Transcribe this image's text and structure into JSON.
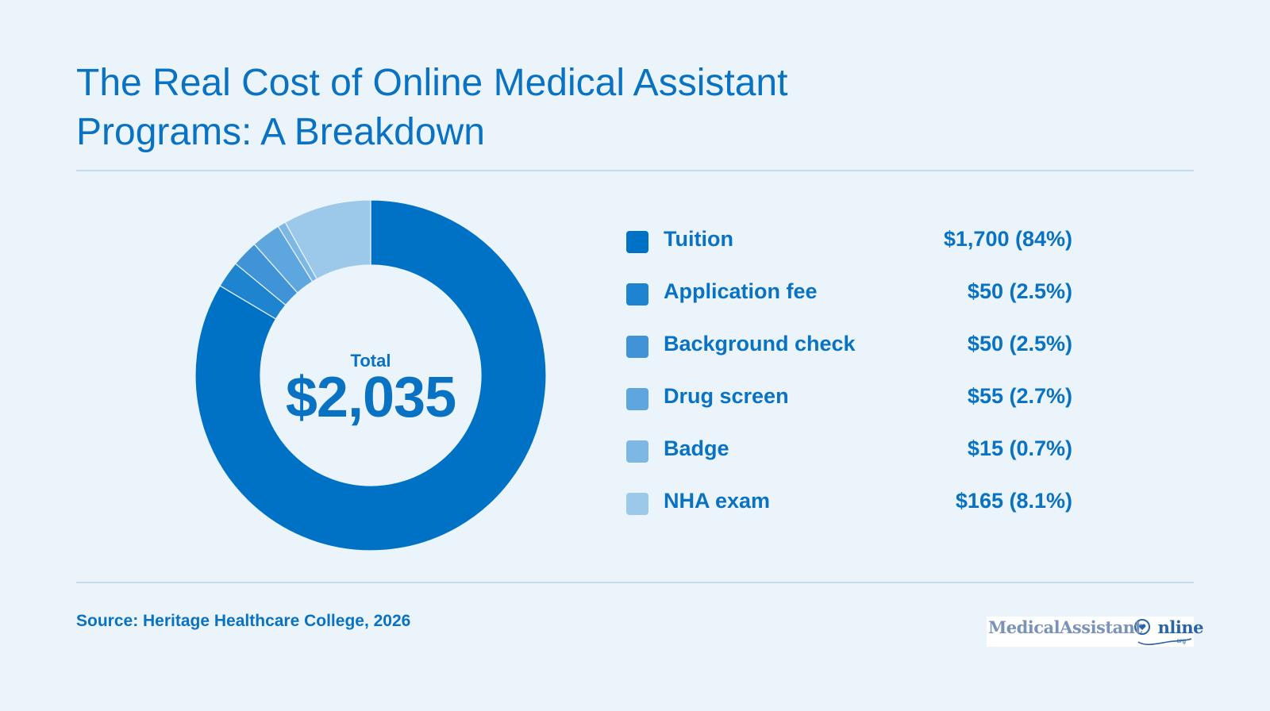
{
  "title": {
    "line1": "The Real Cost of Online Medical Assistant",
    "line2": "Programs: A Breakdown"
  },
  "center": {
    "label": "Total",
    "value": "$2,035"
  },
  "legend": [
    {
      "label": "Tuition",
      "value": "$1,700 (84%)"
    },
    {
      "label": "Application fee",
      "value": "$50 (2.5%)"
    },
    {
      "label": "Background check",
      "value": "$50 (2.5%)"
    },
    {
      "label": "Drug screen",
      "value": "$55 (2.7%)"
    },
    {
      "label": "Badge",
      "value": "$15 (0.7%)"
    },
    {
      "label": "NHA exam",
      "value": "$165 (8.1%)"
    }
  ],
  "source": "Source: Heritage Healthcare College, 2026",
  "logo": {
    "text_main": "MedicalAssistant",
    "text_online": "nline",
    "text_org": "org"
  },
  "colors": {
    "background": "#ebf3fb",
    "text": "#0a72c2",
    "slices": [
      "#0072c6",
      "#1f84d0",
      "#3f93d6",
      "#5ea7de",
      "#7db8e4",
      "#9cc9ea"
    ]
  },
  "chart_data": {
    "type": "pie",
    "variant": "donut",
    "categories": [
      "Tuition",
      "Application fee",
      "Background check",
      "Drug screen",
      "Badge",
      "NHA exam"
    ],
    "values": [
      1700,
      50,
      50,
      55,
      15,
      165
    ],
    "percent_labels": [
      "84%",
      "2.5%",
      "2.5%",
      "2.7%",
      "0.7%",
      "8.1%"
    ],
    "total": 2035,
    "title": "The Real Cost of Online Medical Assistant Programs: A Breakdown",
    "legend_position": "right",
    "start_angle": "top",
    "direction": "clockwise"
  }
}
